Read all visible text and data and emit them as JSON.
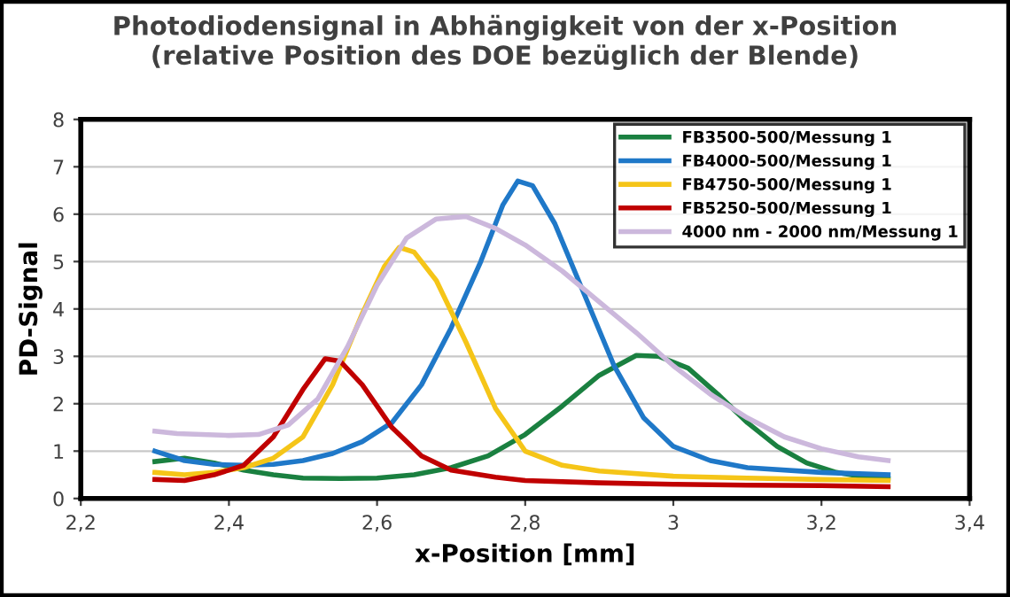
{
  "chart_data": {
    "type": "line",
    "title": "Photodiodensignal in Abhängigkeit von der x-Position\n(relative Position des DOE bezüglich der Blende)",
    "xlabel": "x-Position [mm]",
    "ylabel": "PD-Signal",
    "xlim": [
      2.2,
      3.4
    ],
    "ylim": [
      0,
      8
    ],
    "xticks": [
      {
        "value": 2.2,
        "label": "2,2"
      },
      {
        "value": 2.4,
        "label": "2,4"
      },
      {
        "value": 2.6,
        "label": "2,6"
      },
      {
        "value": 2.8,
        "label": "2,8"
      },
      3,
      {
        "value": 3.2,
        "label": "3,2"
      },
      {
        "value": 3.4,
        "label": "3,4"
      }
    ],
    "yticks": [
      0,
      1,
      2,
      3,
      4,
      5,
      6,
      7,
      8
    ],
    "grid": "y",
    "legend": "top right",
    "marker": "none",
    "line_style": "solid",
    "series": [
      {
        "name": "FB3500-500/Messung 1",
        "color": "#1a8040",
        "x": [
          2.3,
          2.34,
          2.38,
          2.42,
          2.46,
          2.5,
          2.55,
          2.6,
          2.65,
          2.7,
          2.75,
          2.8,
          2.85,
          2.9,
          2.95,
          2.98,
          3.02,
          3.06,
          3.1,
          3.14,
          3.18,
          3.22,
          3.26,
          3.29
        ],
        "values": [
          0.78,
          0.85,
          0.75,
          0.6,
          0.5,
          0.43,
          0.42,
          0.43,
          0.5,
          0.65,
          0.9,
          1.35,
          1.95,
          2.6,
          3.02,
          3.0,
          2.75,
          2.2,
          1.6,
          1.1,
          0.75,
          0.55,
          0.45,
          0.42
        ]
      },
      {
        "name": "FB4000-500/Messung 1",
        "color": "#1f78c8",
        "x": [
          2.3,
          2.34,
          2.38,
          2.42,
          2.46,
          2.5,
          2.54,
          2.58,
          2.62,
          2.66,
          2.7,
          2.74,
          2.77,
          2.79,
          2.81,
          2.84,
          2.88,
          2.92,
          2.96,
          3.0,
          3.05,
          3.1,
          3.2,
          3.29
        ],
        "values": [
          1.0,
          0.8,
          0.72,
          0.7,
          0.72,
          0.8,
          0.95,
          1.2,
          1.6,
          2.4,
          3.6,
          5.0,
          6.2,
          6.7,
          6.6,
          5.8,
          4.3,
          2.8,
          1.7,
          1.1,
          0.8,
          0.65,
          0.55,
          0.5
        ]
      },
      {
        "name": "FB4750-500/Messung 1",
        "color": "#f5c518",
        "x": [
          2.3,
          2.34,
          2.38,
          2.42,
          2.46,
          2.5,
          2.54,
          2.58,
          2.61,
          2.63,
          2.65,
          2.68,
          2.72,
          2.76,
          2.8,
          2.85,
          2.9,
          3.0,
          3.1,
          3.2,
          3.29
        ],
        "values": [
          0.55,
          0.5,
          0.55,
          0.65,
          0.85,
          1.3,
          2.4,
          3.9,
          4.9,
          5.3,
          5.2,
          4.6,
          3.3,
          1.9,
          1.0,
          0.7,
          0.58,
          0.47,
          0.43,
          0.4,
          0.38
        ]
      },
      {
        "name": "FB5250-500/Messung 1",
        "color": "#c00000",
        "x": [
          2.3,
          2.34,
          2.38,
          2.42,
          2.46,
          2.5,
          2.53,
          2.55,
          2.58,
          2.62,
          2.66,
          2.7,
          2.76,
          2.8,
          2.9,
          3.0,
          3.1,
          3.2,
          3.29
        ],
        "values": [
          0.4,
          0.38,
          0.5,
          0.7,
          1.3,
          2.3,
          2.95,
          2.9,
          2.4,
          1.5,
          0.9,
          0.6,
          0.45,
          0.38,
          0.33,
          0.3,
          0.28,
          0.27,
          0.25
        ]
      },
      {
        "name": "4000 nm - 2000 nm/Messung 1",
        "color": "#ccb8dc",
        "x": [
          2.3,
          2.33,
          2.4,
          2.44,
          2.48,
          2.52,
          2.56,
          2.6,
          2.64,
          2.68,
          2.72,
          2.76,
          2.8,
          2.85,
          2.9,
          2.95,
          3.0,
          3.05,
          3.1,
          3.15,
          3.2,
          3.25,
          3.29
        ],
        "values": [
          1.42,
          1.37,
          1.33,
          1.35,
          1.55,
          2.1,
          3.2,
          4.5,
          5.5,
          5.9,
          5.95,
          5.7,
          5.35,
          4.8,
          4.15,
          3.5,
          2.8,
          2.2,
          1.7,
          1.3,
          1.05,
          0.88,
          0.8
        ]
      }
    ]
  }
}
